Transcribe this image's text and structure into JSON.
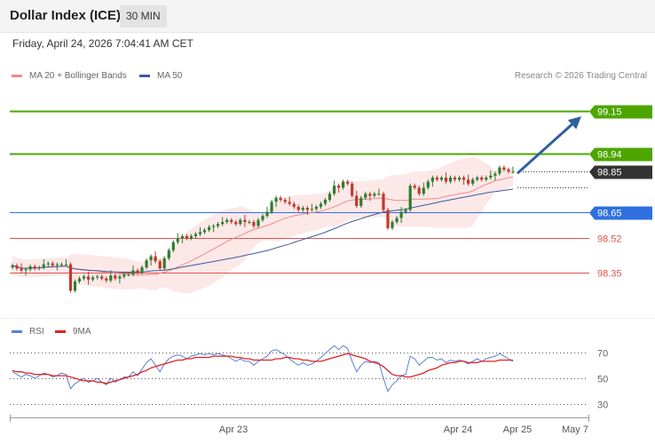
{
  "header": {
    "title": "Dollar Index (ICE)",
    "timeframe": "30 MIN"
  },
  "date_text": "Friday, April 24, 2026 7:04:41 AM CET",
  "legend": {
    "ma20_label": "MA 20 + Bollinger Bands",
    "ma50_label": "MA 50",
    "rsi_label": "RSI",
    "rsi_ma_label": "9MA"
  },
  "credit": "Research © 2026 Trading Central",
  "colors": {
    "ma20": "#f08a8a",
    "ma50": "#3d5a9e",
    "green": "#4da600",
    "blue": "#2f6fe0",
    "red_level": "#e05252",
    "dark_label": "#333333",
    "bull": "#2f7d2f",
    "bear": "#c0392b",
    "band": "#fde4e4",
    "rsi": "#5b7fd6",
    "rsi_ma": "#e02020",
    "arrow": "#2f5f9e"
  },
  "chart_data": [
    {
      "type": "candlestick",
      "title": "Dollar Index (ICE)",
      "interval": "30 MIN",
      "x_ticks": [
        "Apr 23",
        "Apr 24",
        "Apr 25",
        "May 7"
      ],
      "ylim": [
        98.16,
        99.26
      ],
      "levels": [
        {
          "label": "99.15",
          "value": 99.15,
          "color": "green",
          "style": "solid",
          "tag": "filled"
        },
        {
          "label": "98.94",
          "value": 98.94,
          "color": "green",
          "style": "solid",
          "tag": "filled"
        },
        {
          "label": "98.85",
          "value": 98.85,
          "color": "dark_label",
          "style": "dotted",
          "tag": "filled"
        },
        {
          "label": "98.65",
          "value": 98.65,
          "color": "blue",
          "style": "solid",
          "tag": "filled"
        },
        {
          "label": "98.52",
          "value": 98.52,
          "color": "red_level",
          "style": "solid",
          "tag": "text"
        },
        {
          "label": "98.35",
          "value": 98.35,
          "color": "red_level",
          "style": "solid",
          "tag": "text"
        }
      ],
      "ma50_end_value": 98.77,
      "close": [
        98.385,
        98.37,
        98.36,
        98.365,
        98.38,
        98.37,
        98.375,
        98.39,
        98.395,
        98.385,
        98.39,
        98.39,
        98.39,
        98.26,
        98.305,
        98.32,
        98.33,
        98.315,
        98.325,
        98.33,
        98.32,
        98.31,
        98.335,
        98.32,
        98.33,
        98.34,
        98.34,
        98.36,
        98.35,
        98.375,
        98.41,
        98.43,
        98.405,
        98.37,
        98.42,
        98.46,
        98.5,
        98.52,
        98.53,
        98.52,
        98.53,
        98.54,
        98.55,
        98.56,
        98.575,
        98.58,
        98.59,
        98.6,
        98.61,
        98.6,
        98.59,
        98.61,
        98.6,
        98.6,
        98.58,
        98.61,
        98.63,
        98.65,
        98.7,
        98.72,
        98.71,
        98.7,
        98.69,
        98.675,
        98.66,
        98.67,
        98.66,
        98.665,
        98.675,
        98.69,
        98.71,
        98.74,
        98.78,
        98.77,
        98.8,
        98.79,
        98.73,
        98.68,
        98.72,
        98.74,
        98.73,
        98.74,
        98.74,
        98.66,
        98.57,
        98.6,
        98.62,
        98.65,
        98.66,
        98.78,
        98.77,
        98.74,
        98.77,
        98.8,
        98.82,
        98.81,
        98.82,
        98.8,
        98.82,
        98.81,
        98.82,
        98.81,
        98.79,
        98.81,
        98.82,
        98.81,
        98.82,
        98.83,
        98.84,
        98.87,
        98.86,
        98.85,
        98.85
      ],
      "rsi": {
        "ylim": [
          20,
          80
        ],
        "ticks": [
          70,
          50,
          30
        ],
        "values": [
          55,
          53,
          51,
          53,
          52,
          50,
          52,
          54,
          53,
          51,
          52,
          54,
          53,
          42,
          46,
          48,
          50,
          47,
          48,
          50,
          47,
          45,
          50,
          47,
          49,
          51,
          51,
          55,
          52,
          57,
          62,
          65,
          60,
          55,
          61,
          65,
          67,
          68,
          67,
          65,
          67,
          68,
          69,
          68,
          69,
          68,
          69,
          68,
          67,
          65,
          63,
          65,
          63,
          63,
          60,
          63,
          65,
          67,
          71,
          72,
          70,
          68,
          65,
          62,
          60,
          62,
          60,
          61,
          63,
          66,
          69,
          72,
          75,
          72,
          75,
          73,
          63,
          55,
          60,
          63,
          62,
          63,
          62,
          50,
          40,
          45,
          48,
          52,
          53,
          67,
          65,
          60,
          63,
          66,
          66,
          64,
          65,
          62,
          64,
          63,
          64,
          63,
          61,
          63,
          65,
          63,
          65,
          66,
          67,
          69,
          67,
          65,
          63
        ],
        "ma9": [
          56,
          55,
          55,
          54,
          54,
          53,
          53,
          53,
          53,
          52,
          52,
          52,
          52,
          51,
          50,
          49,
          48,
          48,
          48,
          47,
          47,
          46,
          47,
          48,
          49,
          50,
          51,
          52,
          53,
          55,
          56,
          58,
          59,
          60,
          61,
          62,
          63,
          64,
          64,
          65,
          65,
          66,
          66,
          66,
          66,
          67,
          67,
          67,
          67,
          67,
          66,
          66,
          65,
          65,
          64,
          64,
          64,
          64,
          64,
          65,
          65,
          66,
          66,
          65,
          65,
          64,
          64,
          63,
          63,
          63,
          64,
          65,
          66,
          67,
          68,
          69,
          68,
          67,
          66,
          65,
          63,
          62,
          61,
          59,
          56,
          53,
          52,
          52,
          51,
          51,
          52,
          53,
          54,
          56,
          57,
          58,
          60,
          61,
          62,
          62,
          63,
          63,
          62,
          62,
          62,
          63,
          63,
          63,
          63,
          64,
          64,
          64,
          64
        ]
      }
    }
  ]
}
